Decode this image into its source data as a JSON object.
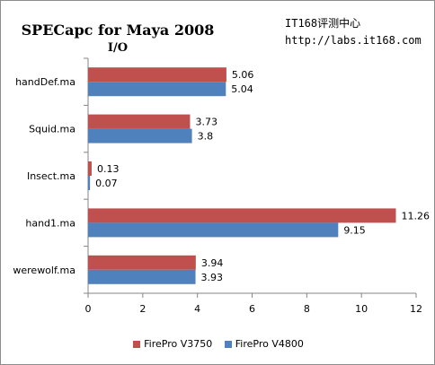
{
  "chart_data": {
    "type": "bar",
    "orientation": "horizontal",
    "title": "SPECapc for Maya 2008",
    "subtitle": "I/O",
    "categories": [
      "handDef.ma",
      "Squid.ma",
      "Insect.ma",
      "hand1.ma",
      "werewolf.ma"
    ],
    "series": [
      {
        "name": "FirePro V3750",
        "color": "#c0504d",
        "values": [
          5.06,
          3.73,
          0.13,
          11.26,
          3.94
        ]
      },
      {
        "name": "FirePro V4800",
        "color": "#4f81bd",
        "values": [
          5.04,
          3.8,
          0.07,
          9.15,
          3.93
        ]
      }
    ],
    "xlim": [
      0,
      12
    ],
    "xticks": [
      "0",
      "2",
      "4",
      "6",
      "8",
      "10",
      "12"
    ],
    "data_labels": [
      [
        "5.06",
        "3.73",
        "0.13",
        "11.26",
        "3.94"
      ],
      [
        "5.04",
        "3.8",
        "0.07",
        "9.15",
        "3.93"
      ]
    ],
    "grid": false,
    "legend_position": "bottom"
  },
  "watermark": {
    "line1": "IT168评测中心",
    "line2": "http://labs.it168.com"
  }
}
